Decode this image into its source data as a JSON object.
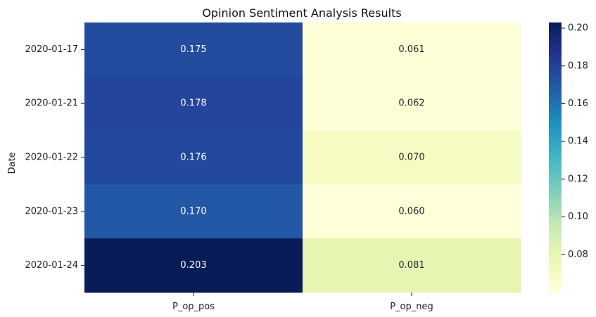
{
  "chart_data": {
    "type": "heatmap",
    "title": "Opinion Sentiment Analysis Results",
    "xlabel": "",
    "ylabel": "Date",
    "x_categories": [
      "P_op_pos",
      "P_op_neg"
    ],
    "y_categories": [
      "2020-01-17",
      "2020-01-21",
      "2020-01-22",
      "2020-01-23",
      "2020-01-24"
    ],
    "values": [
      [
        0.175,
        0.061
      ],
      [
        0.178,
        0.062
      ],
      [
        0.176,
        0.07
      ],
      [
        0.17,
        0.06
      ],
      [
        0.203,
        0.081
      ]
    ],
    "value_labels": [
      [
        "0.175",
        "0.061"
      ],
      [
        "0.178",
        "0.062"
      ],
      [
        "0.176",
        "0.070"
      ],
      [
        "0.170",
        "0.060"
      ],
      [
        "0.203",
        "0.081"
      ]
    ],
    "colormap": "YlGnBu",
    "vmin": 0.06,
    "vmax": 0.203,
    "colorbar_ticks": [
      0.08,
      0.1,
      0.12,
      0.14,
      0.16,
      0.18,
      0.2
    ],
    "colorbar_tick_labels": [
      "0.08",
      "0.10",
      "0.12",
      "0.14",
      "0.16",
      "0.18",
      "0.20"
    ],
    "annotation_text_colors": {
      "dark_cell": "#ffffff",
      "light_cell": "#262626"
    }
  }
}
